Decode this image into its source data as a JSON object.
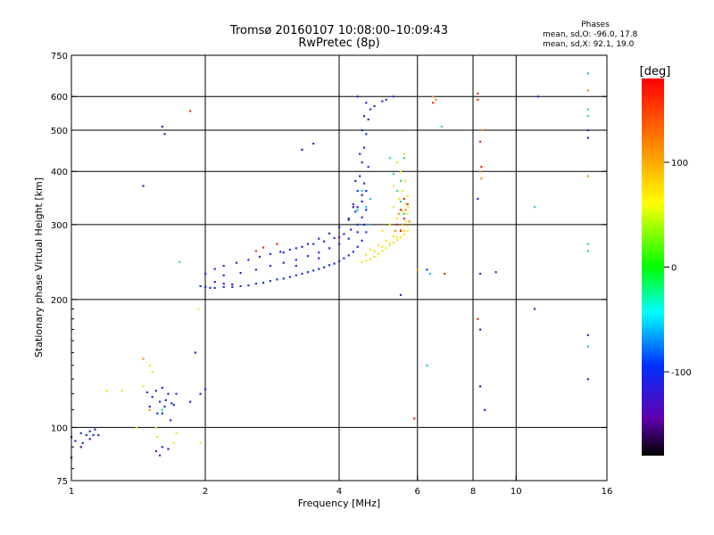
{
  "header": {
    "title_line1": "Tromsø 20160107 10:08:00–10:09:43",
    "title_line2": "RwPretec (8p)"
  },
  "phases_box": {
    "title": "Phases",
    "o_line": "mean, sd,O: -96.0, 17.8",
    "x_line": "mean, sd,X:  92.1, 19.0"
  },
  "chart_data": {
    "type": "scatter",
    "xlabel": "Frequency [MHz]",
    "ylabel": "Stationary phase Virtual Height [km]",
    "x_scale": "log",
    "y_scale": "log",
    "xlim": [
      1,
      16
    ],
    "ylim": [
      75,
      750
    ],
    "x_ticks": [
      1,
      2,
      4,
      6,
      8,
      10,
      16
    ],
    "x_tick_labels": [
      "1",
      "2",
      "4",
      "6",
      "8",
      "10",
      "16"
    ],
    "y_ticks": [
      75,
      100,
      200,
      300,
      400,
      500,
      600,
      750
    ],
    "y_tick_labels": [
      "75",
      "100",
      "200",
      "300",
      "400",
      "500",
      "600",
      "750"
    ],
    "grid": true,
    "grid_x": [
      2,
      4,
      6,
      8,
      10
    ],
    "grid_y": [
      100,
      200,
      300,
      400,
      500,
      600
    ],
    "colorbar": {
      "label": "[deg]",
      "range": [
        -180,
        180
      ],
      "ticks": [
        100,
        0,
        -100
      ],
      "tick_labels": [
        "100",
        "0",
        "-100"
      ]
    },
    "series": [
      {
        "phase": -96,
        "color": "#1f2fd8",
        "points": [
          [
            1.95,
            215
          ],
          [
            2.0,
            214
          ],
          [
            2.05,
            213
          ],
          [
            2.1,
            213
          ],
          [
            2.2,
            214
          ],
          [
            2.3,
            214
          ],
          [
            2.4,
            215
          ],
          [
            2.5,
            216
          ],
          [
            2.6,
            218
          ],
          [
            2.7,
            219
          ],
          [
            2.8,
            221
          ],
          [
            2.9,
            223
          ],
          [
            3.0,
            224
          ],
          [
            3.1,
            226
          ],
          [
            3.2,
            228
          ],
          [
            3.3,
            230
          ],
          [
            3.4,
            232
          ],
          [
            3.5,
            234
          ],
          [
            3.6,
            236
          ],
          [
            3.7,
            238
          ],
          [
            3.8,
            241
          ],
          [
            3.9,
            243
          ],
          [
            4.0,
            246
          ],
          [
            4.1,
            250
          ],
          [
            4.2,
            254
          ],
          [
            4.3,
            259
          ],
          [
            4.4,
            266
          ],
          [
            4.5,
            275
          ],
          [
            4.6,
            288
          ],
          [
            2.0,
            230
          ],
          [
            2.1,
            236
          ],
          [
            2.2,
            240
          ],
          [
            2.35,
            244
          ],
          [
            2.5,
            248
          ],
          [
            2.65,
            252
          ],
          [
            2.8,
            256
          ],
          [
            2.95,
            259
          ],
          [
            3.1,
            262
          ],
          [
            3.3,
            266
          ],
          [
            3.5,
            270
          ],
          [
            3.7,
            274
          ],
          [
            3.9,
            279
          ],
          [
            4.1,
            285
          ],
          [
            4.25,
            292
          ],
          [
            4.4,
            300
          ],
          [
            4.5,
            312
          ],
          [
            4.6,
            325
          ],
          [
            2.2,
            228
          ],
          [
            2.4,
            231
          ],
          [
            2.6,
            235
          ],
          [
            2.8,
            240
          ],
          [
            3.0,
            244
          ],
          [
            3.2,
            248
          ],
          [
            3.4,
            253
          ],
          [
            3.6,
            258
          ],
          [
            3.8,
            264
          ],
          [
            4.0,
            270
          ],
          [
            4.2,
            278
          ],
          [
            4.4,
            288
          ],
          [
            4.55,
            300
          ],
          [
            3.0,
            258
          ],
          [
            3.2,
            264
          ],
          [
            3.4,
            270
          ],
          [
            3.6,
            278
          ],
          [
            3.8,
            286
          ],
          [
            4.0,
            296
          ],
          [
            4.2,
            308
          ],
          [
            4.35,
            322
          ],
          [
            4.5,
            340
          ],
          [
            4.6,
            360
          ],
          [
            4.2,
            310
          ],
          [
            4.3,
            335
          ],
          [
            4.4,
            360
          ],
          [
            4.45,
            390
          ],
          [
            4.5,
            420
          ],
          [
            4.55,
            455
          ],
          [
            4.6,
            490
          ],
          [
            4.65,
            530
          ],
          [
            4.7,
            560
          ],
          [
            4.6,
            580
          ],
          [
            4.35,
            380
          ],
          [
            4.45,
            440
          ],
          [
            4.5,
            500
          ],
          [
            4.55,
            540
          ],
          [
            4.4,
            330
          ],
          [
            4.5,
            352
          ],
          [
            4.55,
            375
          ],
          [
            4.65,
            410
          ],
          [
            1.5,
            112
          ],
          [
            1.52,
            118
          ],
          [
            1.55,
            122
          ],
          [
            1.58,
            115
          ],
          [
            1.6,
            108
          ],
          [
            1.62,
            112
          ],
          [
            1.65,
            120
          ],
          [
            1.68,
            114
          ],
          [
            1.56,
            108
          ],
          [
            1.63,
            116
          ],
          [
            1.7,
            113
          ],
          [
            1.48,
            121
          ],
          [
            1.72,
            120
          ],
          [
            1.6,
            124
          ],
          [
            1.67,
            104
          ],
          [
            1.0,
            95
          ],
          [
            1.02,
            93
          ],
          [
            1.05,
            97
          ],
          [
            1.08,
            96
          ],
          [
            1.1,
            98
          ],
          [
            1.12,
            96
          ],
          [
            1.06,
            92
          ],
          [
            1.13,
            99
          ],
          [
            1.55,
            88
          ],
          [
            1.6,
            90
          ],
          [
            1.65,
            89
          ],
          [
            1.58,
            86
          ],
          [
            1.6,
            510
          ],
          [
            1.62,
            490
          ],
          [
            1.45,
            370
          ],
          [
            3.5,
            465
          ],
          [
            3.3,
            450
          ],
          [
            1.95,
            120
          ],
          [
            1.9,
            150
          ],
          [
            2.0,
            123
          ],
          [
            1.85,
            115
          ],
          [
            5.1,
            590
          ],
          [
            5.3,
            600
          ],
          [
            5.0,
            585
          ],
          [
            4.8,
            570
          ],
          [
            4.4,
            600
          ],
          [
            8.2,
            345
          ],
          [
            8.3,
            230
          ],
          [
            8.5,
            110
          ],
          [
            9.0,
            232
          ],
          [
            11.0,
            190
          ],
          [
            11.2,
            600
          ],
          [
            6.3,
            235
          ],
          [
            5.5,
            205
          ],
          [
            14.5,
            130
          ],
          [
            14.5,
            165
          ],
          [
            14.5,
            500
          ],
          [
            14.5,
            480
          ]
        ]
      },
      {
        "phase": 92,
        "color": "#f2e620",
        "points": [
          [
            4.5,
            245
          ],
          [
            4.6,
            247
          ],
          [
            4.7,
            249
          ],
          [
            4.8,
            252
          ],
          [
            4.9,
            256
          ],
          [
            5.0,
            260
          ],
          [
            5.1,
            264
          ],
          [
            5.2,
            268
          ],
          [
            5.3,
            272
          ],
          [
            5.4,
            276
          ],
          [
            5.5,
            280
          ],
          [
            5.6,
            285
          ],
          [
            5.7,
            290
          ],
          [
            4.6,
            255
          ],
          [
            4.8,
            260
          ],
          [
            5.0,
            266
          ],
          [
            5.2,
            272
          ],
          [
            5.4,
            280
          ],
          [
            5.6,
            290
          ],
          [
            5.7,
            298
          ],
          [
            4.7,
            262
          ],
          [
            4.9,
            268
          ],
          [
            5.1,
            275
          ],
          [
            5.3,
            282
          ],
          [
            5.5,
            292
          ],
          [
            5.65,
            305
          ],
          [
            5.7,
            318
          ],
          [
            5.72,
            330
          ],
          [
            5.0,
            290
          ],
          [
            5.2,
            300
          ],
          [
            5.4,
            310
          ],
          [
            5.55,
            322
          ],
          [
            5.65,
            336
          ],
          [
            5.7,
            350
          ],
          [
            5.3,
            330
          ],
          [
            5.45,
            345
          ],
          [
            5.55,
            360
          ],
          [
            5.62,
            380
          ],
          [
            5.5,
            400
          ],
          [
            5.4,
            420
          ],
          [
            5.6,
            440
          ],
          [
            5.3,
            370
          ],
          [
            1.5,
            140
          ],
          [
            1.52,
            135
          ],
          [
            1.45,
            125
          ],
          [
            1.55,
            100
          ],
          [
            1.56,
            95
          ],
          [
            1.7,
            92
          ],
          [
            1.72,
            97
          ],
          [
            1.4,
            100
          ],
          [
            1.3,
            122
          ],
          [
            1.2,
            122
          ],
          [
            1.95,
            92
          ],
          [
            1.93,
            190
          ]
        ]
      },
      {
        "phase": 40,
        "color": "#30d88a",
        "points": [
          [
            5.6,
            318
          ],
          [
            5.5,
            340
          ],
          [
            5.4,
            360
          ],
          [
            5.3,
            395
          ],
          [
            5.2,
            430
          ],
          [
            5.6,
            430
          ],
          [
            5.5,
            380
          ],
          [
            1.6,
            110
          ],
          [
            1.75,
            245
          ],
          [
            14.5,
            560
          ],
          [
            14.5,
            540
          ],
          [
            14.5,
            260
          ],
          [
            14.5,
            270
          ],
          [
            6.8,
            510
          ]
        ]
      },
      {
        "phase": -20,
        "color": "#10c8d8",
        "points": [
          [
            4.6,
            330
          ],
          [
            4.5,
            360
          ],
          [
            4.4,
            325
          ],
          [
            4.7,
            345
          ],
          [
            4.65,
            300
          ],
          [
            14.5,
            680
          ],
          [
            14.5,
            155
          ],
          [
            11.0,
            330
          ],
          [
            6.3,
            140
          ],
          [
            6.4,
            230
          ]
        ]
      },
      {
        "phase": 150,
        "color": "#e83010",
        "points": [
          [
            5.6,
            310
          ],
          [
            5.5,
            325
          ],
          [
            5.4,
            300
          ],
          [
            5.7,
            335
          ],
          [
            5.6,
            345
          ],
          [
            1.85,
            555
          ],
          [
            2.6,
            260
          ],
          [
            2.7,
            265
          ],
          [
            2.9,
            270
          ],
          [
            5.5,
            290
          ],
          [
            8.2,
            610
          ],
          [
            8.2,
            180
          ],
          [
            6.5,
            580
          ],
          [
            6.9,
            230
          ],
          [
            5.9,
            105
          ],
          [
            8.2,
            590
          ],
          [
            8.3,
            470
          ],
          [
            8.35,
            410
          ]
        ]
      },
      {
        "phase": 120,
        "color": "#f09010",
        "points": [
          [
            5.55,
            300
          ],
          [
            5.45,
            318
          ],
          [
            5.65,
            325
          ],
          [
            5.35,
            290
          ],
          [
            5.75,
            305
          ],
          [
            6.5,
            600
          ],
          [
            6.6,
            590
          ],
          [
            8.3,
            400
          ],
          [
            8.35,
            385
          ],
          [
            8.4,
            500
          ],
          [
            14.5,
            620
          ],
          [
            14.5,
            390
          ],
          [
            6.0,
            235
          ],
          [
            1.45,
            145
          ],
          [
            1.5,
            110
          ]
        ]
      },
      {
        "phase": -140,
        "color": "#5a10b0",
        "points": [
          [
            2.1,
            220
          ],
          [
            2.2,
            218
          ],
          [
            2.3,
            217
          ],
          [
            3.2,
            240
          ],
          [
            3.6,
            250
          ],
          [
            4.0,
            280
          ],
          [
            4.3,
            330
          ],
          [
            1.05,
            90
          ],
          [
            1.1,
            94
          ],
          [
            8.3,
            125
          ],
          [
            8.3,
            170
          ],
          [
            1.0,
            85
          ],
          [
            1.15,
            96
          ]
        ]
      }
    ]
  }
}
